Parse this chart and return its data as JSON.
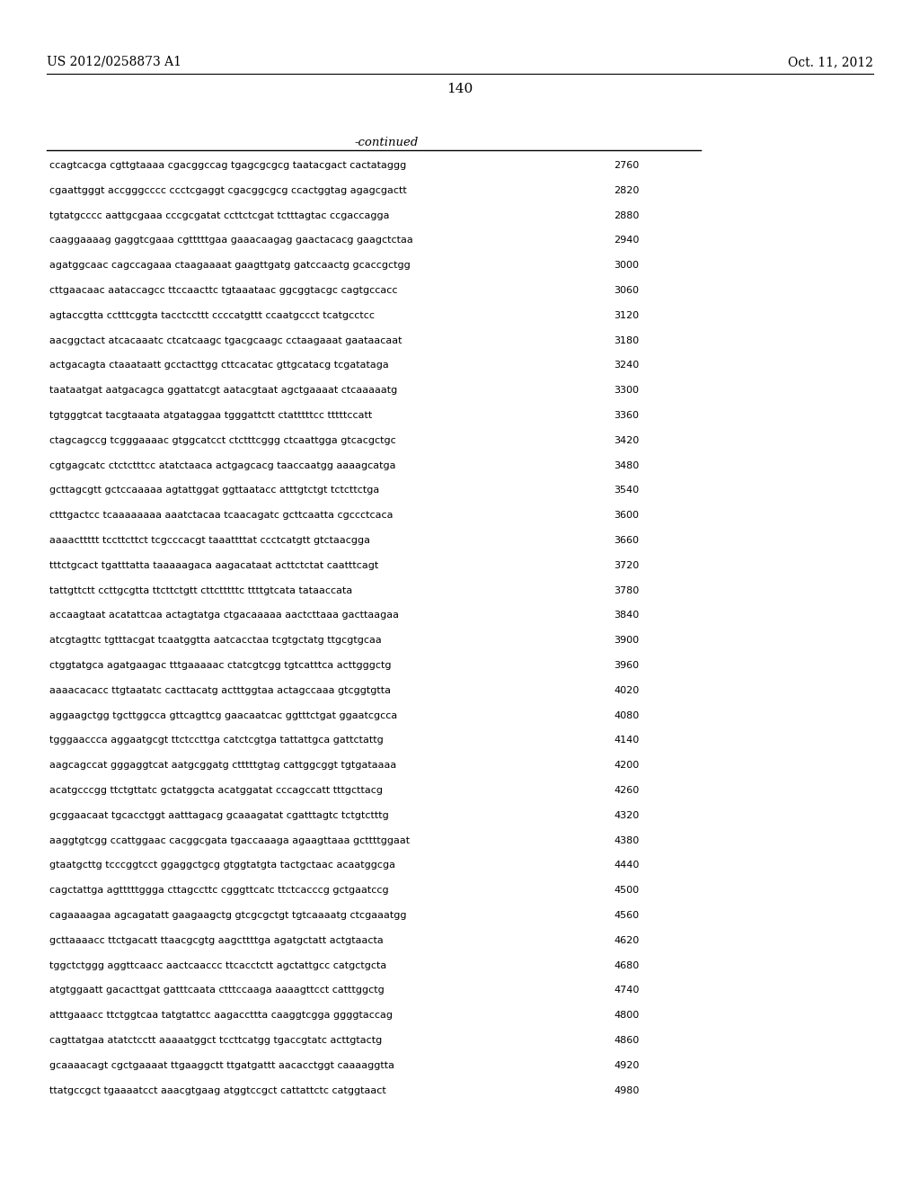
{
  "header_left": "US 2012/0258873 A1",
  "header_right": "Oct. 11, 2012",
  "page_number": "140",
  "continued_label": "-continued",
  "background_color": "#ffffff",
  "text_color": "#000000",
  "sequences": [
    [
      "ccagtcacga cgttgtaaaa cgacggccag tgagcgcgcg taatacgact cactataggg",
      "2760"
    ],
    [
      "cgaattgggt accgggcccc ccctcgaggt cgacggcgcg ccactggtag agagcgactt",
      "2820"
    ],
    [
      "tgtatgcccc aattgcgaaa cccgcgatat ccttctcgat tctttagtac ccgaccagga",
      "2880"
    ],
    [
      "caaggaaaag gaggtcgaaa cgtttttgaa gaaacaagag gaactacacg gaagctctaa",
      "2940"
    ],
    [
      "agatggcaac cagccagaaa ctaagaaaat gaagttgatg gatccaactg gcaccgctgg",
      "3000"
    ],
    [
      "cttgaacaac aataccagcc ttccaacttc tgtaaataac ggcggtacgc cagtgccacc",
      "3060"
    ],
    [
      "agtaccgtta cctttcggta tacctccttt ccccatgttt ccaatgccct tcatgcctcc",
      "3120"
    ],
    [
      "aacggctact atcacaaatc ctcatcaagc tgacgcaagc cctaagaaat gaataacaat",
      "3180"
    ],
    [
      "actgacagta ctaaataatt gcctacttgg cttcacatac gttgcatacg tcgatataga",
      "3240"
    ],
    [
      "taataatgat aatgacagca ggattatcgt aatacgtaat agctgaaaat ctcaaaaatg",
      "3300"
    ],
    [
      "tgtgggtcat tacgtaaata atgataggaa tgggattctt ctatttttcc tttttccatt",
      "3360"
    ],
    [
      "ctagcagccg tcgggaaaac gtggcatcct ctctttcggg ctcaattgga gtcacgctgc",
      "3420"
    ],
    [
      "cgtgagcatc ctctctttcc atatctaaca actgagcacg taaccaatgg aaaagcatga",
      "3480"
    ],
    [
      "gcttagcgtt gctccaaaaa agtattggat ggttaatacc atttgtctgt tctcttctga",
      "3540"
    ],
    [
      "ctttgactcc tcaaaaaaaa aaatctacaa tcaacagatc gcttcaatta cgccctcaca",
      "3600"
    ],
    [
      "aaaacttttt tccttcttct tcgcccacgt taaattttat ccctcatgtt gtctaacgga",
      "3660"
    ],
    [
      "tttctgcact tgatttatta taaaaagaca aagacataat acttctctat caatttcagt",
      "3720"
    ],
    [
      "tattgttctt ccttgcgtta ttcttctgtt cttctttttc ttttgtcata tataaccata",
      "3780"
    ],
    [
      "accaagtaat acatattcaa actagtatga ctgacaaaaa aactcttaaa gacttaagaa",
      "3840"
    ],
    [
      "atcgtagttc tgtttacgat tcaatggtta aatcacctaa tcgtgctatg ttgcgtgcaa",
      "3900"
    ],
    [
      "ctggtatgca agatgaagac tttgaaaaac ctatcgtcgg tgtcatttca acttgggctg",
      "3960"
    ],
    [
      "aaaacacacc ttgtaatatc cacttacatg actttggtaa actagccaaa gtcggtgtta",
      "4020"
    ],
    [
      "aggaagctgg tgcttggcca gttcagttcg gaacaatcac ggtttctgat ggaatcgcca",
      "4080"
    ],
    [
      "tgggaaccca aggaatgcgt ttctccttga catctcgtga tattattgca gattctattg",
      "4140"
    ],
    [
      "aagcagccat gggaggtcat aatgcggatg ctttttgtag cattggcggt tgtgataaaa",
      "4200"
    ],
    [
      "acatgcccgg ttctgttatc gctatggcta acatggatat cccagccatt tttgcttacg",
      "4260"
    ],
    [
      "gcggaacaat tgcacctggt aatttagacg gcaaagatat cgatttagtc tctgtctttg",
      "4320"
    ],
    [
      "aaggtgtcgg ccattggaac cacggcgata tgaccaaaga agaagttaaa gcttttggaat",
      "4380"
    ],
    [
      "gtaatgcttg tcccggtcct ggaggctgcg gtggtatgta tactgctaac acaatggcga",
      "4440"
    ],
    [
      "cagctattga agtttttggga cttagccttc cgggttcatc ttctcacccg gctgaatccg",
      "4500"
    ],
    [
      "cagaaaagaa agcagatatt gaagaagctg gtcgcgctgt tgtcaaaatg ctcgaaatgg",
      "4560"
    ],
    [
      "gcttaaaacc ttctgacatt ttaacgcgtg aagcttttga agatgctatt actgtaacta",
      "4620"
    ],
    [
      "tggctctggg aggttcaacc aactcaaccc ttcacctctt agctattgcc catgctgcta",
      "4680"
    ],
    [
      "atgtggaatt gacacttgat gatttcaata ctttccaaga aaaagttcct catttggctg",
      "4740"
    ],
    [
      "atttgaaacc ttctggtcaa tatgtattcc aagaccttta caaggtcgga ggggtaccag",
      "4800"
    ],
    [
      "cagttatgaa atatctcctt aaaaatggct tccttcatgg tgaccgtatc acttgtactg",
      "4860"
    ],
    [
      "gcaaaacagt cgctgaaaat ttgaaggctt ttgatgattt aacacctggt caaaaggtta",
      "4920"
    ],
    [
      "ttatgccgct tgaaaatcct aaacgtgaag atggtccgct cattattctc catggtaact",
      "4980"
    ]
  ]
}
